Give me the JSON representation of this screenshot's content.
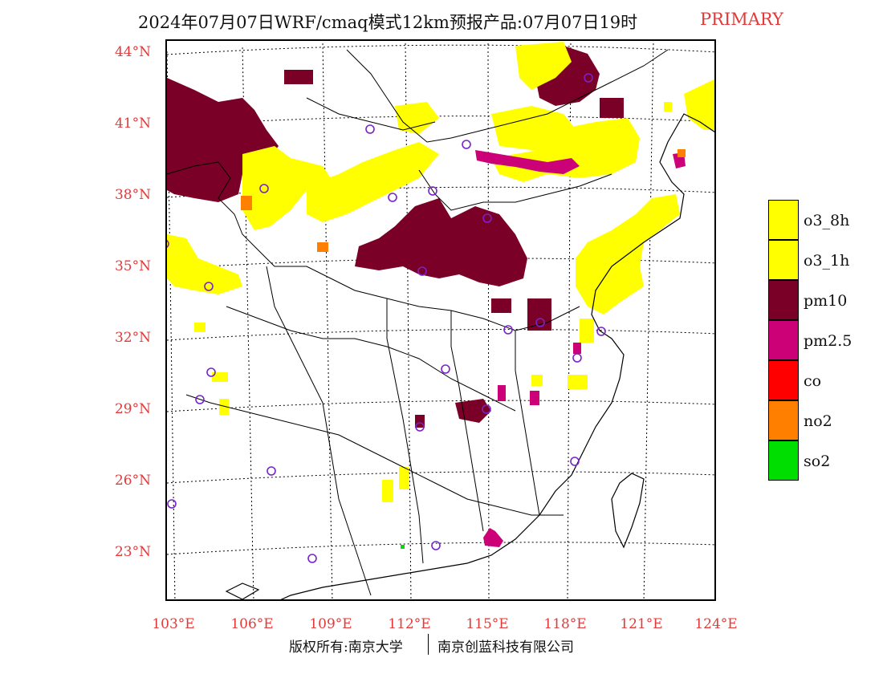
{
  "title": {
    "main": "2024年07月07日WRF/cmaq模式12km预报产品:07月07日19时",
    "tag": "PRIMARY"
  },
  "axes": {
    "lat_labels": [
      "44°N",
      "41°N",
      "38°N",
      "35°N",
      "32°N",
      "29°N",
      "26°N",
      "23°N"
    ],
    "lon_labels": [
      "103°E",
      "106°E",
      "109°E",
      "112°E",
      "115°E",
      "118°E",
      "121°E",
      "124°E"
    ]
  },
  "legend": [
    {
      "label": "o3_8h",
      "color": "#ffff00"
    },
    {
      "label": "o3_1h",
      "color": "#ffff00"
    },
    {
      "label": "pm10",
      "color": "#7a0028"
    },
    {
      "label": "pm2.5",
      "color": "#cc0077"
    },
    {
      "label": "co",
      "color": "#ff0000"
    },
    {
      "label": "no2",
      "color": "#ff7f00"
    },
    {
      "label": "so2",
      "color": "#00dd00"
    }
  ],
  "footer": {
    "left": "版权所有:南京大学",
    "right": "南京创蓝科技有限公司"
  }
}
